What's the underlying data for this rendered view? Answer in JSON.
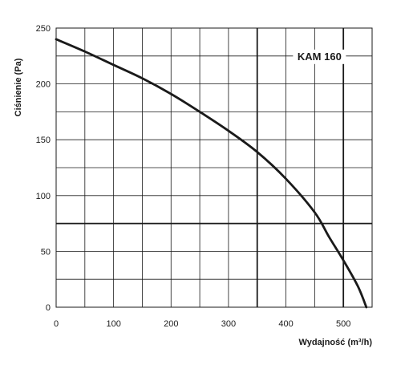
{
  "chart_data": {
    "type": "line",
    "title": "",
    "xlabel": "Wydajność (m³/h)",
    "ylabel": "Ciśnienie (Pa)",
    "xlim": [
      0,
      550
    ],
    "ylim": [
      0,
      250
    ],
    "x_ticks": [
      0,
      100,
      200,
      300,
      400,
      500
    ],
    "y_ticks": [
      0,
      50,
      100,
      150,
      200,
      250
    ],
    "grid": true,
    "x_grid_step": 50,
    "y_grid_step": 25,
    "legend": "top-right",
    "reference_lines": [
      {
        "axis": "x",
        "value": 350
      },
      {
        "axis": "x",
        "value": 500
      },
      {
        "axis": "y",
        "value": 75
      }
    ],
    "series": [
      {
        "name": "KAM 160",
        "x": [
          0,
          50,
          100,
          150,
          200,
          250,
          300,
          350,
          400,
          450,
          475,
          500,
          525,
          540
        ],
        "values": [
          240,
          229,
          217,
          205,
          191,
          175,
          158,
          139,
          115,
          85,
          63,
          42,
          19,
          0
        ]
      }
    ]
  }
}
